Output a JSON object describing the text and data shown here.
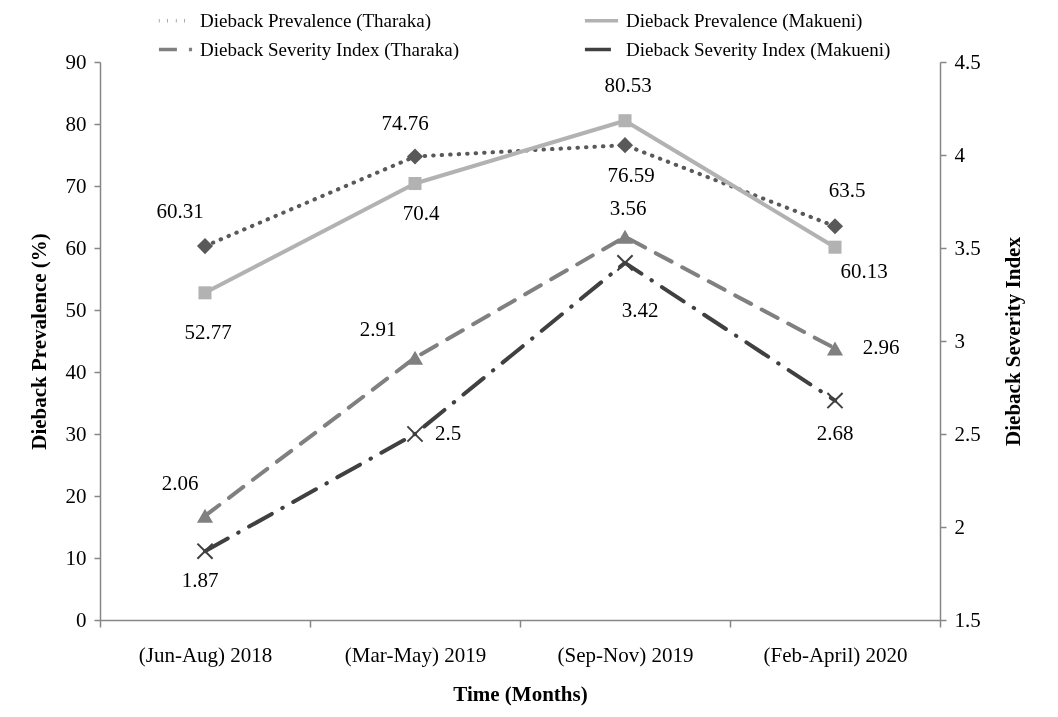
{
  "chart_data": {
    "type": "line",
    "xlabel": "Time (Months)",
    "ylabel": "Dieback Prevalence (%)",
    "y2label": "Dieback Severity Index",
    "categories": [
      "(Jun-Aug) 2018",
      "(Mar-May) 2019",
      "(Sep-Nov) 2019",
      "(Feb-April) 2020"
    ],
    "series": [
      {
        "name": "Dieback Prevalence (Tharaka)",
        "color": "#595959",
        "values": [
          60.31,
          74.76,
          76.59,
          63.5
        ],
        "marker": "diamond",
        "line_style": "dotted"
      },
      {
        "name": "Dieback Prevalence (Makueni)",
        "color": "#b2b2b2",
        "values": [
          52.77,
          70.4,
          80.53,
          60.13
        ],
        "marker": "square",
        "line_style": "solid"
      },
      {
        "name": "Dieback Severity Index (Tharaka)",
        "color": "#808080",
        "values": [
          2.06,
          2.91,
          3.56,
          2.96
        ],
        "axis": "y2",
        "marker": "triangle",
        "line_style": "dashed"
      },
      {
        "name": "Dieback Severity Index (Makueni)",
        "color": "#404040",
        "values": [
          1.87,
          2.5,
          3.42,
          2.68
        ],
        "axis": "y2",
        "marker": "cross",
        "line_style": "dashdot"
      }
    ],
    "ylim": [
      0,
      90
    ],
    "yticks": [
      0,
      10,
      20,
      30,
      40,
      50,
      60,
      70,
      80,
      90
    ],
    "y2lim": [
      1.5,
      4.5
    ],
    "y2ticks": [
      1.5,
      2,
      2.5,
      3,
      3.5,
      4,
      4.5
    ],
    "data_labels": true,
    "legend": "top",
    "grid": false
  }
}
